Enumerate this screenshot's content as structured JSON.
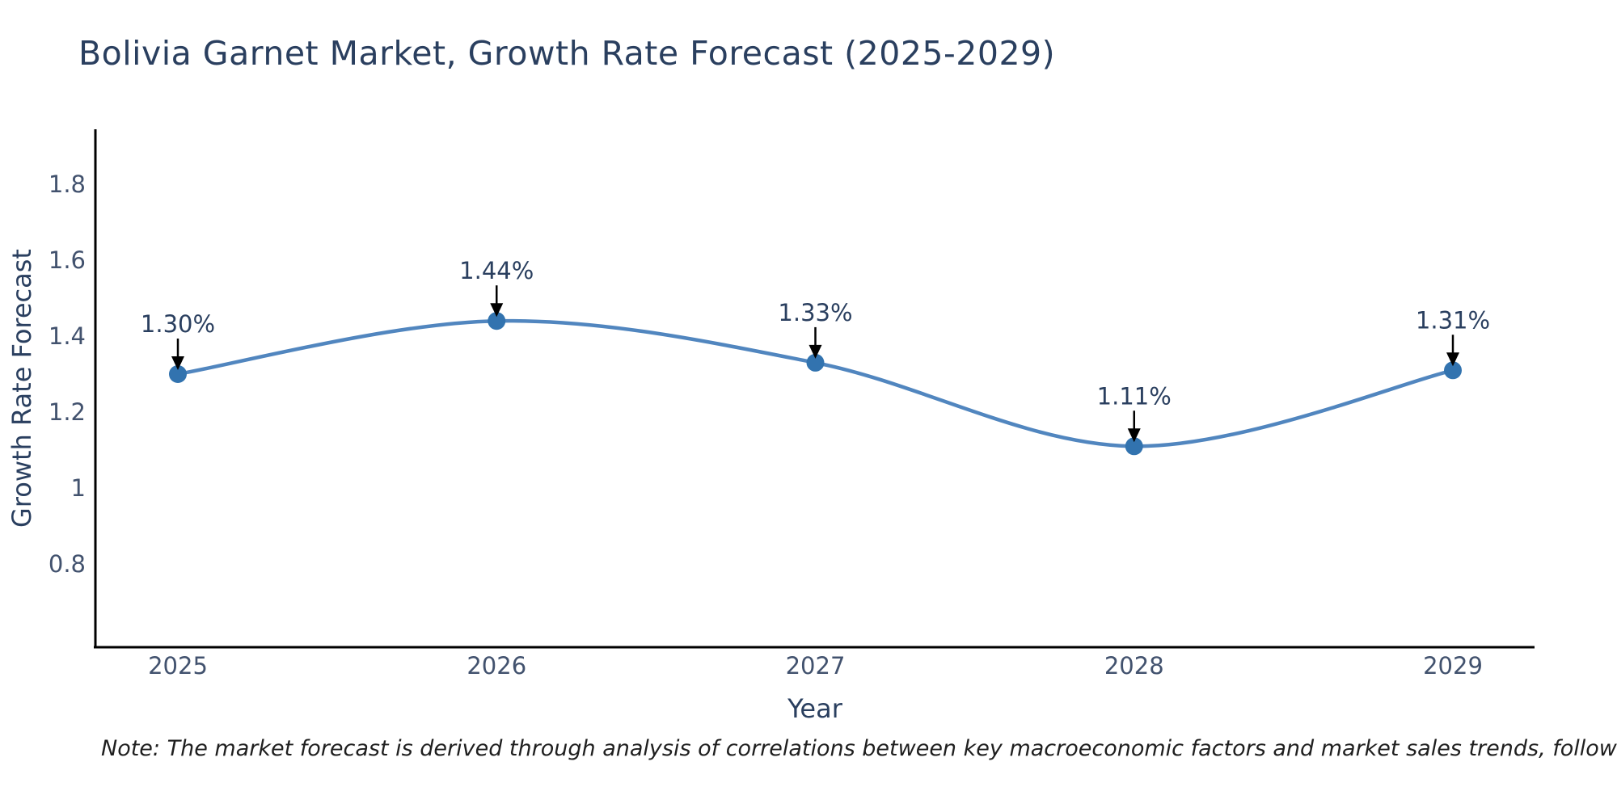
{
  "title": "Bolivia Garnet Market, Growth Rate Forecast (2025-2029)",
  "note": "Note: The market forecast is derived through analysis of correlations between key macroeconomic factors and market sales trends, followed by predictive modeling to project future sales",
  "chart_data": {
    "type": "line",
    "title": "Bolivia Garnet Market, Growth Rate Forecast (2025-2029)",
    "xlabel": "Year",
    "ylabel": "Growth Rate Forecast",
    "x": [
      2025,
      2026,
      2027,
      2028,
      2029
    ],
    "xtick_labels": [
      "2025",
      "2026",
      "2027",
      "2028",
      "2029"
    ],
    "series": [
      {
        "name": "Growth Rate Forecast",
        "values": [
          1.3,
          1.44,
          1.33,
          1.11,
          1.31
        ]
      }
    ],
    "point_labels": [
      "1.30%",
      "1.44%",
      "1.33%",
      "1.11%",
      "1.31%"
    ],
    "yticks": [
      0.8,
      1,
      1.2,
      1.4,
      1.6,
      1.8
    ],
    "ytick_labels": [
      "0.8",
      "1",
      "1.2",
      "1.4",
      "1.6",
      "1.8"
    ],
    "ylim": [
      0.58,
      1.95
    ],
    "grid": false,
    "legend": "none",
    "line_style": "smooth-spline",
    "marker_style": "filled-circle",
    "annotation_arrows": true,
    "colors": {
      "line": "#5186bf",
      "marker": "#3273af",
      "axis": "#000000",
      "title_text": "#2a3f5f",
      "axis_label_text": "#2a3f5f",
      "tick_text": "#42526e",
      "annotation_text": "#2a3f5f",
      "annotation_arrow": "#000000",
      "note_text": "#1f1f1f",
      "background": "#ffffff"
    }
  }
}
